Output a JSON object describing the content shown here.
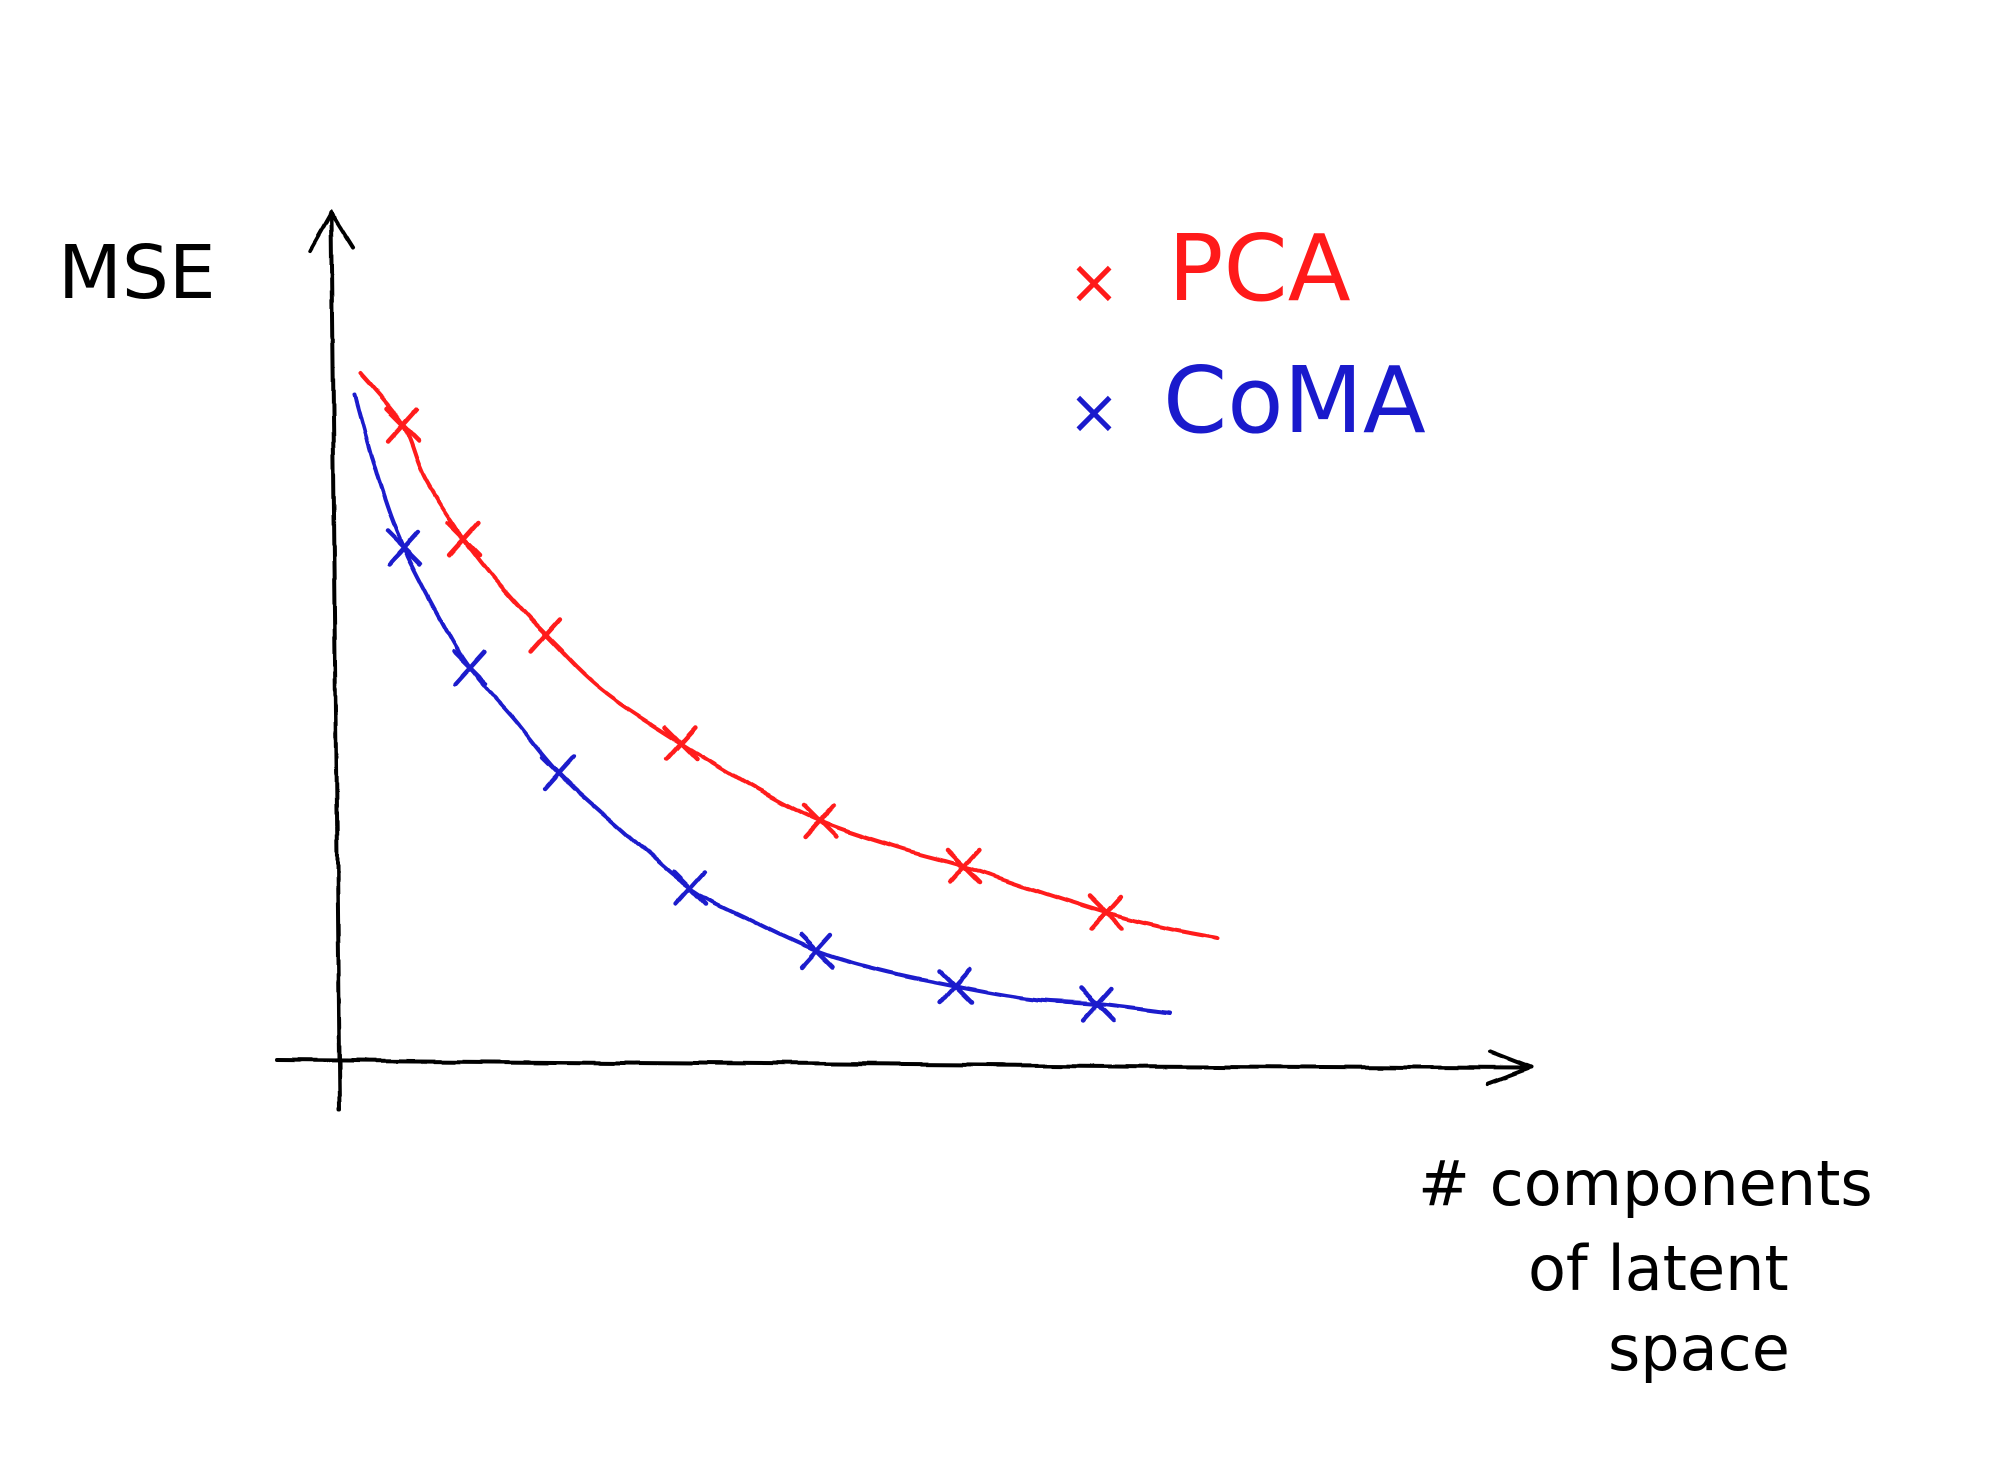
{
  "chart_data": {
    "type": "line",
    "title": "",
    "xlabel": "# components of latent space",
    "xlabel_lines": [
      "# components",
      "of latent",
      "space"
    ],
    "ylabel": "MSE",
    "grid": false,
    "legend_position": "top-right",
    "x_ticks_shown": false,
    "y_ticks_shown": false,
    "axis_units": "hand-drawn, unscaled (x: 0 at y-axis, y: 0 at x-axis)",
    "xlim": [
      0,
      1000
    ],
    "ylim": [
      0,
      720
    ],
    "series": [
      {
        "name": "PCA",
        "color": "#ff1a1a",
        "marker": "x",
        "values_x": [
          63,
          124,
          206,
          341,
          480,
          624,
          766
        ],
        "values_y": [
          638,
          524,
          428,
          320,
          242,
          197,
          150
        ],
        "curve_x": [
          20,
          63,
          85,
          124,
          160,
          206,
          262,
          341,
          410,
          480,
          560,
          624,
          700,
          766,
          825,
          878
        ],
        "curve_y": [
          690,
          638,
          585,
          524,
          478,
          428,
          373,
          320,
          278,
          242,
          215,
          197,
          171,
          150,
          135,
          125
        ]
      },
      {
        "name": "CoMA",
        "color": "#1a1acc",
        "marker": "x",
        "values_x": [
          64,
          130,
          219,
          350,
          477,
          615,
          757
        ],
        "values_y": [
          515,
          395,
          290,
          175,
          112,
          77,
          59
        ],
        "curve_x": [
          15,
          40,
          64,
          100,
          130,
          175,
          219,
          280,
          350,
          410,
          477,
          540,
          615,
          690,
          757,
          830
        ],
        "curve_y": [
          668,
          580,
          515,
          445,
          395,
          343,
          290,
          235,
          175,
          143,
          112,
          93,
          77,
          64,
          59,
          50
        ]
      }
    ]
  }
}
